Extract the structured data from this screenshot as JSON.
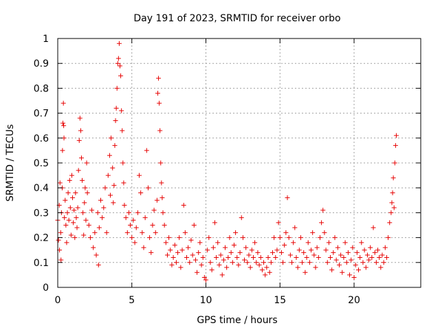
{
  "chart_data": {
    "type": "scatter",
    "title": "Day 191 of 2023, SRMTID for receiver orbo",
    "xlabel": "GPS time / hours",
    "ylabel": "SRMTID / TECUs",
    "xlim": [
      0,
      24.5
    ],
    "ylim": [
      0,
      1
    ],
    "xticks": [
      0,
      5,
      10,
      15,
      20
    ],
    "xtick_labels": [
      "0",
      "5",
      "10",
      "15",
      "20"
    ],
    "yticks": [
      0,
      0.1,
      0.2,
      0.3,
      0.4,
      0.5,
      0.6,
      0.7,
      0.8,
      0.9,
      1
    ],
    "ytick_labels": [
      "0",
      "0.1",
      "0.2",
      "0.3",
      "0.4",
      "0.5",
      "0.6",
      "0.7",
      "0.8",
      "0.9",
      "1"
    ],
    "grid": true,
    "marker": "+",
    "color": "#e60000",
    "series": [
      {
        "name": "SRMTID",
        "points": [
          [
            0.0,
            0.27
          ],
          [
            0.05,
            0.19
          ],
          [
            0.1,
            0.33
          ],
          [
            0.12,
            0.15
          ],
          [
            0.15,
            0.42
          ],
          [
            0.2,
            0.22
          ],
          [
            0.22,
            0.11
          ],
          [
            0.25,
            0.3
          ],
          [
            0.3,
            0.4
          ],
          [
            0.32,
            0.55
          ],
          [
            0.35,
            0.66
          ],
          [
            0.38,
            0.74
          ],
          [
            0.4,
            0.65
          ],
          [
            0.42,
            0.6
          ],
          [
            0.45,
            0.28
          ],
          [
            0.5,
            0.35
          ],
          [
            0.55,
            0.25
          ],
          [
            0.6,
            0.18
          ],
          [
            0.65,
            0.3
          ],
          [
            0.7,
            0.38
          ],
          [
            0.75,
            0.27
          ],
          [
            0.8,
            0.43
          ],
          [
            0.85,
            0.32
          ],
          [
            0.9,
            0.21
          ],
          [
            0.95,
            0.45
          ],
          [
            1.0,
            0.36
          ],
          [
            1.05,
            0.26
          ],
          [
            1.1,
            0.31
          ],
          [
            1.15,
            0.2
          ],
          [
            1.2,
            0.38
          ],
          [
            1.25,
            0.28
          ],
          [
            1.3,
            0.24
          ],
          [
            1.35,
            0.32
          ],
          [
            1.4,
            0.47
          ],
          [
            1.45,
            0.59
          ],
          [
            1.5,
            0.68
          ],
          [
            1.55,
            0.63
          ],
          [
            1.6,
            0.52
          ],
          [
            1.65,
            0.43
          ],
          [
            1.7,
            0.3
          ],
          [
            1.75,
            0.21
          ],
          [
            1.8,
            0.34
          ],
          [
            1.85,
            0.4
          ],
          [
            1.9,
            0.27
          ],
          [
            1.95,
            0.5
          ],
          [
            2.0,
            0.38
          ],
          [
            2.1,
            0.25
          ],
          [
            2.2,
            0.2
          ],
          [
            2.3,
            0.31
          ],
          [
            2.4,
            0.16
          ],
          [
            2.5,
            0.22
          ],
          [
            2.6,
            0.13
          ],
          [
            2.7,
            0.3
          ],
          [
            2.75,
            0.09
          ],
          [
            2.8,
            0.24
          ],
          [
            2.9,
            0.35
          ],
          [
            3.0,
            0.28
          ],
          [
            3.1,
            0.32
          ],
          [
            3.2,
            0.4
          ],
          [
            3.3,
            0.22
          ],
          [
            3.4,
            0.45
          ],
          [
            3.5,
            0.53
          ],
          [
            3.55,
            0.37
          ],
          [
            3.6,
            0.6
          ],
          [
            3.7,
            0.48
          ],
          [
            3.75,
            0.34
          ],
          [
            3.8,
            0.41
          ],
          [
            3.85,
            0.57
          ],
          [
            3.9,
            0.67
          ],
          [
            3.95,
            0.72
          ],
          [
            4.0,
            0.8
          ],
          [
            4.05,
            0.9
          ],
          [
            4.1,
            0.92
          ],
          [
            4.15,
            0.98
          ],
          [
            4.2,
            0.89
          ],
          [
            4.25,
            0.85
          ],
          [
            4.3,
            0.71
          ],
          [
            4.35,
            0.63
          ],
          [
            4.4,
            0.5
          ],
          [
            4.45,
            0.42
          ],
          [
            4.5,
            0.33
          ],
          [
            4.6,
            0.28
          ],
          [
            4.7,
            0.22
          ],
          [
            4.8,
            0.3
          ],
          [
            4.9,
            0.25
          ],
          [
            5.0,
            0.2
          ],
          [
            5.1,
            0.27
          ],
          [
            5.2,
            0.18
          ],
          [
            5.3,
            0.24
          ],
          [
            5.4,
            0.3
          ],
          [
            5.5,
            0.45
          ],
          [
            5.6,
            0.38
          ],
          [
            5.7,
            0.22
          ],
          [
            5.8,
            0.16
          ],
          [
            5.9,
            0.28
          ],
          [
            6.0,
            0.55
          ],
          [
            6.1,
            0.4
          ],
          [
            6.2,
            0.2
          ],
          [
            6.3,
            0.14
          ],
          [
            6.4,
            0.25
          ],
          [
            6.5,
            0.31
          ],
          [
            6.6,
            0.22
          ],
          [
            6.7,
            0.35
          ],
          [
            6.75,
            0.78
          ],
          [
            6.8,
            0.84
          ],
          [
            6.85,
            0.74
          ],
          [
            6.9,
            0.63
          ],
          [
            6.95,
            0.5
          ],
          [
            7.0,
            0.42
          ],
          [
            7.05,
            0.36
          ],
          [
            7.1,
            0.3
          ],
          [
            7.2,
            0.25
          ],
          [
            7.3,
            0.18
          ],
          [
            7.4,
            0.13
          ],
          [
            7.5,
            0.2
          ],
          [
            7.6,
            0.15
          ],
          [
            7.7,
            0.09
          ],
          [
            7.8,
            0.12
          ],
          [
            7.9,
            0.17
          ],
          [
            8.0,
            0.1
          ],
          [
            8.1,
            0.14
          ],
          [
            8.2,
            0.2
          ],
          [
            8.3,
            0.08
          ],
          [
            8.4,
            0.15
          ],
          [
            8.5,
            0.33
          ],
          [
            8.6,
            0.22
          ],
          [
            8.7,
            0.12
          ],
          [
            8.8,
            0.16
          ],
          [
            8.9,
            0.1
          ],
          [
            9.0,
            0.19
          ],
          [
            9.1,
            0.13
          ],
          [
            9.2,
            0.25
          ],
          [
            9.3,
            0.11
          ],
          [
            9.4,
            0.06
          ],
          [
            9.5,
            0.14
          ],
          [
            9.6,
            0.18
          ],
          [
            9.7,
            0.09
          ],
          [
            9.8,
            0.12
          ],
          [
            9.9,
            0.04
          ],
          [
            10.0,
            0.03
          ],
          [
            10.1,
            0.15
          ],
          [
            10.2,
            0.2
          ],
          [
            10.3,
            0.1
          ],
          [
            10.4,
            0.07
          ],
          [
            10.5,
            0.16
          ],
          [
            10.6,
            0.26
          ],
          [
            10.7,
            0.12
          ],
          [
            10.8,
            0.18
          ],
          [
            10.9,
            0.09
          ],
          [
            11.0,
            0.13
          ],
          [
            11.1,
            0.05
          ],
          [
            11.2,
            0.11
          ],
          [
            11.3,
            0.16
          ],
          [
            11.4,
            0.08
          ],
          [
            11.5,
            0.12
          ],
          [
            11.6,
            0.2
          ],
          [
            11.7,
            0.14
          ],
          [
            11.8,
            0.1
          ],
          [
            11.9,
            0.17
          ],
          [
            12.0,
            0.22
          ],
          [
            12.1,
            0.12
          ],
          [
            12.2,
            0.09
          ],
          [
            12.3,
            0.14
          ],
          [
            12.4,
            0.28
          ],
          [
            12.5,
            0.2
          ],
          [
            12.6,
            0.11
          ],
          [
            12.7,
            0.16
          ],
          [
            12.8,
            0.1
          ],
          [
            12.9,
            0.13
          ],
          [
            13.0,
            0.08
          ],
          [
            13.1,
            0.15
          ],
          [
            13.2,
            0.12
          ],
          [
            13.3,
            0.18
          ],
          [
            13.4,
            0.1
          ],
          [
            13.5,
            0.14
          ],
          [
            13.6,
            0.09
          ],
          [
            13.7,
            0.12
          ],
          [
            13.8,
            0.07
          ],
          [
            13.9,
            0.1
          ],
          [
            14.0,
            0.05
          ],
          [
            14.1,
            0.08
          ],
          [
            14.2,
            0.12
          ],
          [
            14.3,
            0.06
          ],
          [
            14.4,
            0.1
          ],
          [
            14.5,
            0.14
          ],
          [
            14.6,
            0.2
          ],
          [
            14.7,
            0.12
          ],
          [
            14.8,
            0.15
          ],
          [
            14.9,
            0.26
          ],
          [
            15.0,
            0.2
          ],
          [
            15.1,
            0.14
          ],
          [
            15.2,
            0.1
          ],
          [
            15.3,
            0.17
          ],
          [
            15.4,
            0.22
          ],
          [
            15.5,
            0.36
          ],
          [
            15.6,
            0.2
          ],
          [
            15.7,
            0.13
          ],
          [
            15.8,
            0.1
          ],
          [
            15.9,
            0.18
          ],
          [
            16.0,
            0.24
          ],
          [
            16.1,
            0.12
          ],
          [
            16.2,
            0.08
          ],
          [
            16.3,
            0.15
          ],
          [
            16.4,
            0.2
          ],
          [
            16.5,
            0.1
          ],
          [
            16.6,
            0.14
          ],
          [
            16.7,
            0.06
          ],
          [
            16.8,
            0.12
          ],
          [
            16.9,
            0.18
          ],
          [
            17.0,
            0.1
          ],
          [
            17.1,
            0.15
          ],
          [
            17.2,
            0.22
          ],
          [
            17.3,
            0.13
          ],
          [
            17.4,
            0.08
          ],
          [
            17.5,
            0.16
          ],
          [
            17.6,
            0.12
          ],
          [
            17.7,
            0.2
          ],
          [
            17.8,
            0.26
          ],
          [
            17.9,
            0.31
          ],
          [
            18.0,
            0.22
          ],
          [
            18.1,
            0.15
          ],
          [
            18.2,
            0.1
          ],
          [
            18.3,
            0.18
          ],
          [
            18.4,
            0.12
          ],
          [
            18.5,
            0.07
          ],
          [
            18.6,
            0.14
          ],
          [
            18.7,
            0.2
          ],
          [
            18.8,
            0.11
          ],
          [
            18.9,
            0.16
          ],
          [
            19.0,
            0.09
          ],
          [
            19.1,
            0.13
          ],
          [
            19.2,
            0.06
          ],
          [
            19.3,
            0.12
          ],
          [
            19.4,
            0.18
          ],
          [
            19.5,
            0.1
          ],
          [
            19.6,
            0.14
          ],
          [
            19.7,
            0.05
          ],
          [
            19.8,
            0.11
          ],
          [
            19.9,
            0.16
          ],
          [
            20.0,
            0.04
          ],
          [
            20.1,
            0.09
          ],
          [
            20.2,
            0.14
          ],
          [
            20.3,
            0.07
          ],
          [
            20.4,
            0.12
          ],
          [
            20.5,
            0.18
          ],
          [
            20.6,
            0.1
          ],
          [
            20.7,
            0.15
          ],
          [
            20.8,
            0.08
          ],
          [
            20.9,
            0.13
          ],
          [
            21.0,
            0.11
          ],
          [
            21.1,
            0.16
          ],
          [
            21.2,
            0.12
          ],
          [
            21.3,
            0.24
          ],
          [
            21.4,
            0.14
          ],
          [
            21.5,
            0.1
          ],
          [
            21.6,
            0.15
          ],
          [
            21.7,
            0.12
          ],
          [
            21.8,
            0.08
          ],
          [
            21.9,
            0.13
          ],
          [
            22.0,
            0.1
          ],
          [
            22.1,
            0.16
          ],
          [
            22.2,
            0.12
          ],
          [
            22.3,
            0.2
          ],
          [
            22.4,
            0.26
          ],
          [
            22.5,
            0.3
          ],
          [
            22.55,
            0.34
          ],
          [
            22.6,
            0.38
          ],
          [
            22.65,
            0.44
          ],
          [
            22.7,
            0.32
          ],
          [
            22.75,
            0.5
          ],
          [
            22.8,
            0.57
          ],
          [
            22.85,
            0.61
          ]
        ]
      }
    ]
  }
}
